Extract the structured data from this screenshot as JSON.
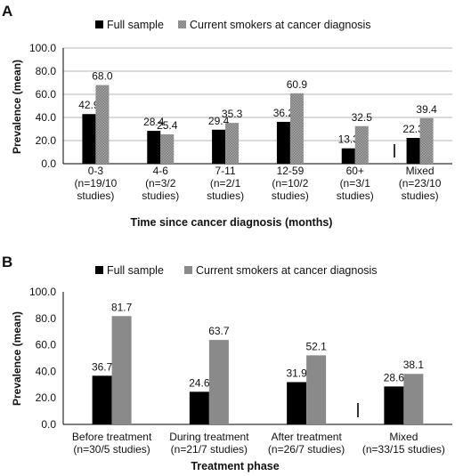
{
  "colors": {
    "full": "#000000",
    "smokers": "#8a8a8a",
    "smokers_hatch": "#9a9a9a",
    "axis": "#000000",
    "grid": "#9d9d9d"
  },
  "chart_data": [
    {
      "panel": "A",
      "type": "bar",
      "legend": [
        "Full sample",
        "Current smokers at cancer diagnosis"
      ],
      "legend_position": "top",
      "ylabel": "Prevalence (mean)",
      "xlabel": "Time since cancer diagnosis (months)",
      "ylim": [
        0,
        100
      ],
      "yticks": [
        "0.0",
        "20.0",
        "40.0",
        "60.0",
        "80.0",
        "100.0"
      ],
      "grid": true,
      "categories": [
        [
          "0-3",
          "(n=19/10",
          "studies)"
        ],
        [
          "4-6",
          "(n=3/2",
          "studies)"
        ],
        [
          "7-11",
          "(n=2/1",
          "studies)"
        ],
        [
          "12-59",
          "(n=10/2",
          "studies)"
        ],
        [
          "60+",
          "(n=3/1",
          "studies)"
        ],
        [
          "Mixed",
          "(n=23/10",
          "studies)"
        ]
      ],
      "series": [
        {
          "name": "Full sample",
          "values": [
            42.9,
            28.4,
            29.4,
            36.2,
            13.3,
            22.3
          ],
          "labels": [
            "42.9",
            "28.4",
            "29.4",
            "36.2",
            "13.3",
            "22.3"
          ]
        },
        {
          "name": "Current smokers at cancer diagnosis",
          "values": [
            68.0,
            25.4,
            35.3,
            60.9,
            32.5,
            39.4
          ],
          "labels": [
            "68.0",
            "25.4",
            "35.3",
            "60.9",
            "32.5",
            "39.4"
          ]
        }
      ]
    },
    {
      "panel": "B",
      "type": "bar",
      "legend": [
        "Full sample",
        "Current smokers at cancer diagnosis"
      ],
      "legend_position": "top",
      "ylabel": "Prevalence (mean)",
      "xlabel": "Treatment phase",
      "ylim": [
        0,
        100
      ],
      "yticks": [
        "0.0",
        "20.0",
        "40.0",
        "60.0",
        "80.0",
        "100.0"
      ],
      "grid": false,
      "categories": [
        [
          "Before treatment",
          "(n=30/5 studies)"
        ],
        [
          "During treatment",
          "(n=21/7 studies)"
        ],
        [
          "After treatment",
          "(n=26/7 studies)"
        ],
        [
          "Mixed",
          "(n=33/15 studies)"
        ]
      ],
      "series": [
        {
          "name": "Full sample",
          "values": [
            36.7,
            24.6,
            31.9,
            28.6
          ],
          "labels": [
            "36.7",
            "24.6",
            "31.9",
            "28.6"
          ]
        },
        {
          "name": "Current smokers at cancer diagnosis",
          "values": [
            81.7,
            63.7,
            52.1,
            38.1
          ],
          "labels": [
            "81.7",
            "63.7",
            "52.1",
            "38.1"
          ]
        }
      ]
    }
  ]
}
